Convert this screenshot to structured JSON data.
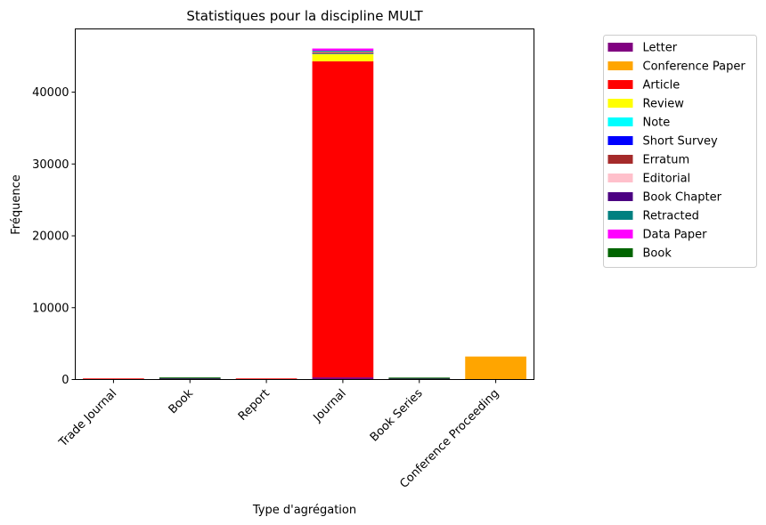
{
  "chart_data": {
    "type": "bar",
    "stacked": true,
    "title": "Statistiques pour la discipline MULT",
    "xlabel": "Type d'agrégation",
    "ylabel": "Fréquence",
    "ylim": [
      0,
      48800
    ],
    "yticks": [
      0,
      10000,
      20000,
      30000,
      40000
    ],
    "ytick_labels": [
      "0",
      "10000",
      "20000",
      "30000",
      "40000"
    ],
    "categories": [
      "Trade Journal",
      "Book",
      "Report",
      "Journal",
      "Book Series",
      "Conference Proceeding"
    ],
    "grid": false,
    "legend_position": "outside-right",
    "series": [
      {
        "name": "Letter",
        "color": "#800080",
        "values": [
          0,
          0,
          0,
          300,
          0,
          0
        ]
      },
      {
        "name": "Conference Paper",
        "color": "#FFA500",
        "values": [
          0,
          0,
          0,
          0,
          0,
          3200
        ]
      },
      {
        "name": "Article",
        "color": "#FF0000",
        "values": [
          5,
          20,
          3,
          44000,
          20,
          0
        ]
      },
      {
        "name": "Review",
        "color": "#FFFF00",
        "values": [
          0,
          0,
          0,
          1000,
          0,
          0
        ]
      },
      {
        "name": "Note",
        "color": "#00FFFF",
        "values": [
          0,
          0,
          0,
          50,
          0,
          0
        ]
      },
      {
        "name": "Short Survey",
        "color": "#0000FF",
        "values": [
          0,
          0,
          0,
          20,
          0,
          0
        ]
      },
      {
        "name": "Erratum",
        "color": "#A52A2A",
        "values": [
          0,
          0,
          0,
          150,
          0,
          0
        ]
      },
      {
        "name": "Editorial",
        "color": "#FFC0CB",
        "values": [
          0,
          0,
          0,
          100,
          0,
          0
        ]
      },
      {
        "name": "Book Chapter",
        "color": "#4B0082",
        "values": [
          0,
          120,
          0,
          0,
          100,
          0
        ]
      },
      {
        "name": "Retracted",
        "color": "#008080",
        "values": [
          0,
          0,
          0,
          150,
          0,
          0
        ]
      },
      {
        "name": "Data Paper",
        "color": "#FF00FF",
        "values": [
          0,
          0,
          0,
          300,
          0,
          0
        ]
      },
      {
        "name": "Book",
        "color": "#006400",
        "values": [
          0,
          10,
          0,
          0,
          5,
          0
        ]
      }
    ]
  }
}
